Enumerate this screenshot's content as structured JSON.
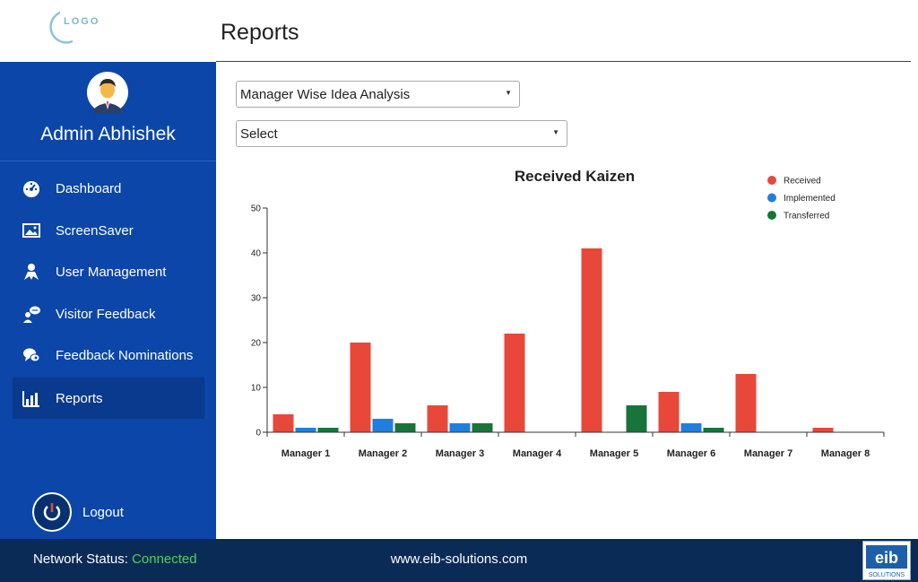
{
  "header": {
    "logo_text": "LOGO",
    "page_title": "Reports"
  },
  "sidebar": {
    "admin_name": "Admin Abhishek",
    "items": [
      {
        "label": "Dashboard",
        "icon": "dashboard-icon",
        "active": false
      },
      {
        "label": "ScreenSaver",
        "icon": "image-icon",
        "active": false
      },
      {
        "label": "User Management",
        "icon": "user-icon",
        "active": false
      },
      {
        "label": "Visitor Feedback",
        "icon": "feedback-icon",
        "active": false
      },
      {
        "label": "Feedback Nominations",
        "icon": "nominations-icon",
        "active": false
      },
      {
        "label": "Reports",
        "icon": "bar-chart-icon",
        "active": true
      }
    ],
    "logout_label": "Logout"
  },
  "filters": {
    "report_type": "Manager Wise Idea Analysis",
    "secondary": "Select"
  },
  "footer": {
    "network_label": "Network Status:",
    "network_value": "Connected",
    "website": "www.eib-solutions.com",
    "brand_logo_text": "eib",
    "brand_logo_sub": "SOLUTIONS"
  },
  "colors": {
    "sidebar": "#0b46a8",
    "footer": "#0b2b57",
    "received": "#e8483a",
    "implemented": "#1f7fe0",
    "transferred": "#17753a",
    "connected": "#4bd35a"
  },
  "chart_data": {
    "type": "bar",
    "title": "Received Kaizen",
    "categories": [
      "Manager 1",
      "Manager 2",
      "Manager 3",
      "Manager 4",
      "Manager 5",
      "Manager 6",
      "Manager 7",
      "Manager 8"
    ],
    "series": [
      {
        "name": "Received",
        "color": "#e8483a",
        "values": [
          4,
          20,
          6,
          22,
          41,
          9,
          13,
          1
        ]
      },
      {
        "name": "Implemented",
        "color": "#1f7fe0",
        "values": [
          1,
          3,
          2,
          0,
          0,
          2,
          0,
          0
        ]
      },
      {
        "name": "Transferred",
        "color": "#17753a",
        "values": [
          1,
          2,
          2,
          0,
          6,
          1,
          0,
          0
        ]
      }
    ],
    "ylim": [
      0,
      50
    ],
    "yticks": [
      0,
      10,
      20,
      30,
      40,
      50
    ],
    "legend_position": "top-right",
    "grid": false
  }
}
